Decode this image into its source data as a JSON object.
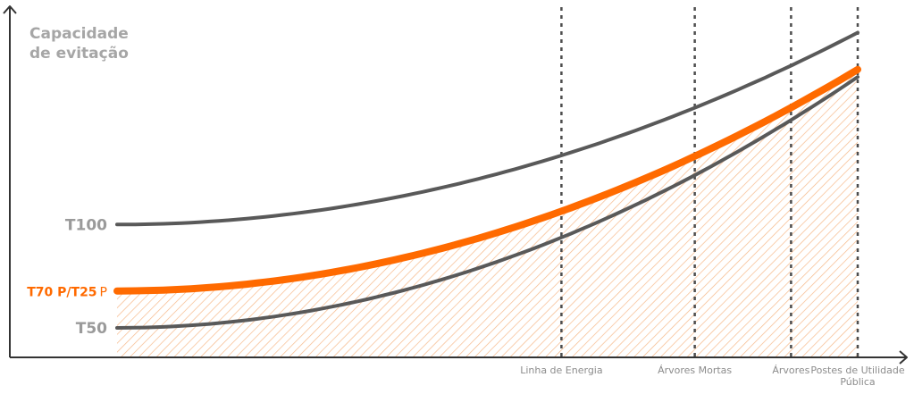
{
  "chart_data": {
    "type": "line",
    "title": "",
    "ylabel": [
      "Capacidade",
      "de evitação"
    ],
    "xlabel": "",
    "categories": [
      "Linha de Energia",
      "Árvores Mortas",
      "Árvores",
      "Postes de Utilidade Pública"
    ],
    "category_label_lines": [
      [
        "Linha de Energia"
      ],
      [
        "Árvores Mortas"
      ],
      [
        "Árvores"
      ],
      [
        "Postes de Utilidade",
        "Pública"
      ]
    ],
    "x_positions": [
      0.6,
      0.78,
      0.91,
      1.0
    ],
    "series": [
      {
        "name": "T100",
        "label": "T100",
        "color": "#595959",
        "width": "thin",
        "start": 0.9,
        "end": 2.2,
        "shape": "convex"
      },
      {
        "name": "T70 P/T25 P",
        "label": "T70 P/T25",
        "label_suffix": "P",
        "color": "#ff6a00",
        "width": "thick",
        "start": 0.45,
        "end": 1.95,
        "shape": "convex",
        "hatched_area_below": true
      },
      {
        "name": "T50",
        "label": "T50",
        "color": "#595959",
        "width": "thin",
        "start": 0.2,
        "end": 1.9,
        "shape": "convex"
      }
    ],
    "ylim": [
      0,
      2.3
    ],
    "xlim": [
      0,
      1
    ],
    "grid": false,
    "vertical_markers": "dashed",
    "accent_color": "#ff6a00",
    "line_color": "#595959",
    "hatch_color": "#f6b98a"
  }
}
